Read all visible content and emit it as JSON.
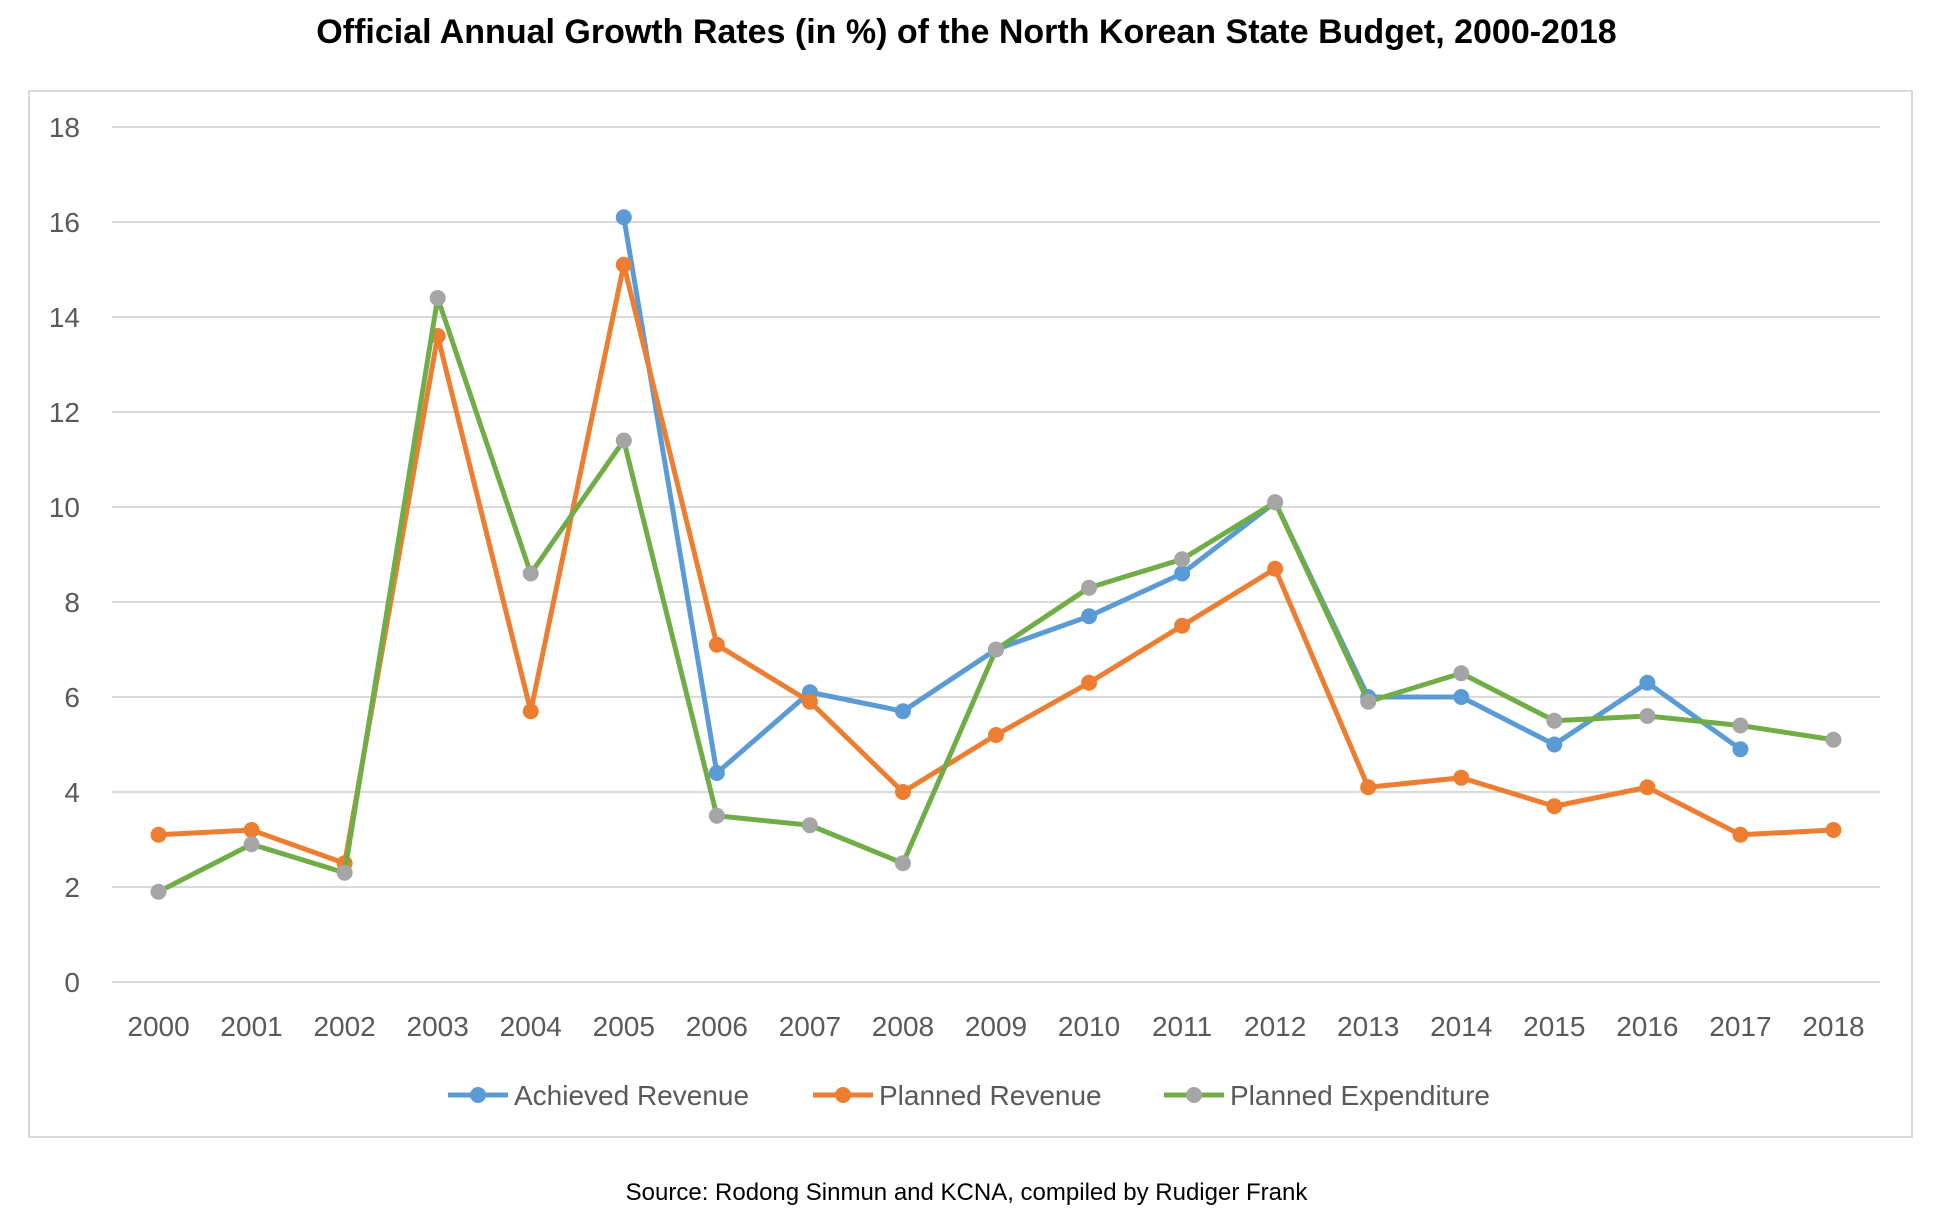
{
  "chart_data": {
    "type": "line",
    "title": "Official Annual Growth Rates (in %) of the North Korean State Budget, 2000-2018",
    "source": "Source: Rodong Sinmun and KCNA, compiled by Rudiger Frank",
    "categories": [
      "2000",
      "2001",
      "2002",
      "2003",
      "2004",
      "2005",
      "2006",
      "2007",
      "2008",
      "2009",
      "2010",
      "2011",
      "2012",
      "2013",
      "2014",
      "2015",
      "2016",
      "2017",
      "2018"
    ],
    "y_ticks": [
      "0",
      "2",
      "4",
      "6",
      "8",
      "10",
      "12",
      "14",
      "16",
      "18"
    ],
    "ylim": [
      0,
      18
    ],
    "grid": true,
    "legend_position": "bottom",
    "series": [
      {
        "name": "Achieved Revenue",
        "color": "#5b9bd5",
        "marker_color": "#5b9bd5",
        "values": [
          null,
          null,
          null,
          null,
          null,
          16.1,
          4.4,
          6.1,
          5.7,
          7.0,
          7.7,
          8.6,
          10.1,
          6.0,
          6.0,
          5.0,
          6.3,
          4.9,
          null
        ]
      },
      {
        "name": "Planned Revenue",
        "color": "#ed7d31",
        "marker_color": "#ed7d31",
        "values": [
          3.1,
          3.2,
          2.5,
          13.6,
          5.7,
          15.1,
          7.1,
          5.9,
          4.0,
          5.2,
          6.3,
          7.5,
          8.7,
          4.1,
          4.3,
          3.7,
          4.1,
          3.1,
          3.2
        ]
      },
      {
        "name": "Planned Expenditure",
        "color": "#70ad47",
        "marker_color": "#a5a5a5",
        "values": [
          1.9,
          2.9,
          2.3,
          14.4,
          8.6,
          11.4,
          3.5,
          3.3,
          2.5,
          7.0,
          8.3,
          8.9,
          10.1,
          5.9,
          6.5,
          5.5,
          5.6,
          5.4,
          5.1
        ]
      }
    ]
  }
}
